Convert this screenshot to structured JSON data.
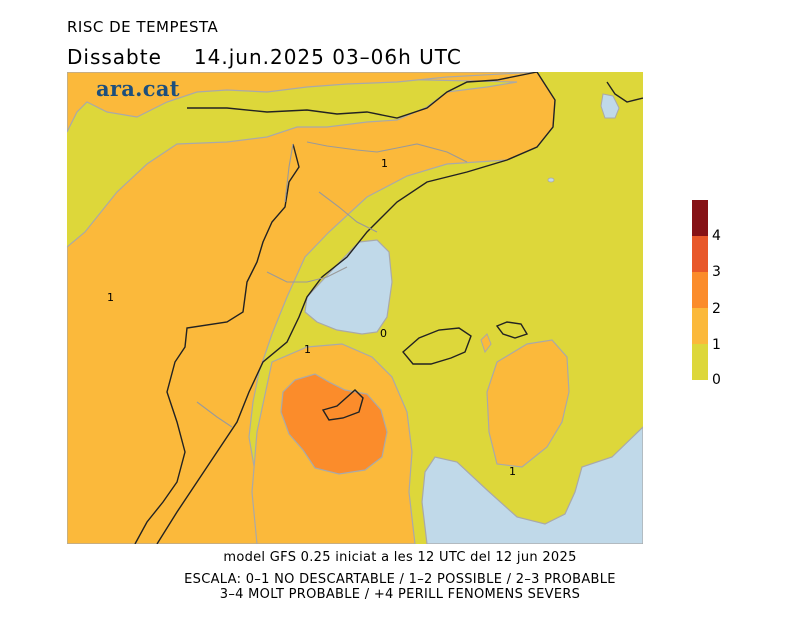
{
  "header": {
    "title": "RISC DE TEMPESTA",
    "day": "Dissabte",
    "datetime": "14.jun.2025 03–06h UTC"
  },
  "brand": "ara.cat",
  "legend": {
    "ticks": [
      "0",
      "1",
      "2",
      "3",
      "4"
    ],
    "colors": [
      "#ddd73a",
      "#fbb93b",
      "#fb8c2b",
      "#e8582a",
      "#861216"
    ]
  },
  "map": {
    "contour_labels": [
      "1",
      "1",
      "0",
      "1",
      "1"
    ]
  },
  "footer": {
    "model_line": "model GFS 0.25 iniciat a les 12 UTC del 12 jun 2025",
    "scale_line1": "ESCALA: 0–1 NO DESCARTABLE / 1–2 POSSIBLE / 2–3 PROBABLE",
    "scale_line2": "3–4 MOLT PROBABLE / +4 PERILL FENOMENS SEVERS"
  }
}
